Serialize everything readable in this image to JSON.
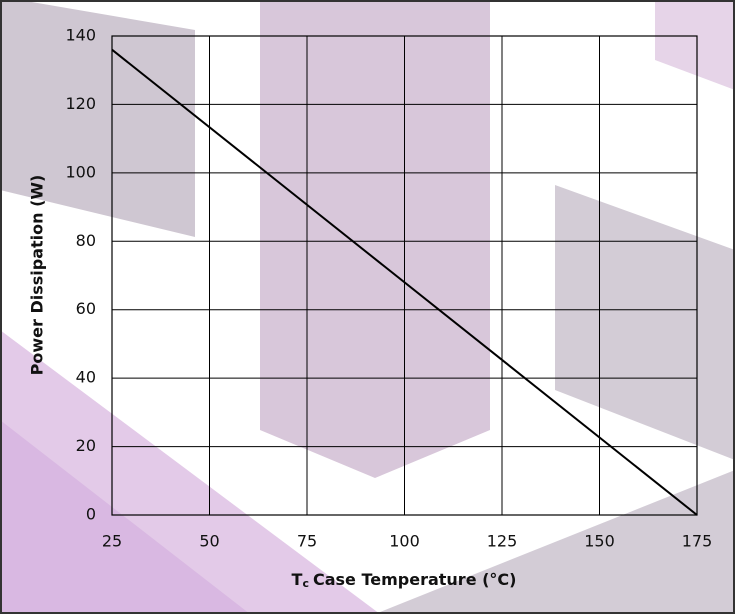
{
  "chart_data": {
    "type": "line",
    "ylabel": "Power Dissipation (W)",
    "xlabel": {
      "symbol": "T",
      "subscript": "c",
      "text": "Case Temperature (°C)"
    },
    "x": [
      25,
      175
    ],
    "series": [
      {
        "color": "#000000",
        "values": [
          136,
          0
        ]
      }
    ],
    "xlim": [
      25,
      175
    ],
    "xticks": [
      25,
      50,
      75,
      100,
      125,
      150,
      175
    ],
    "ylim": [
      0,
      140
    ],
    "yticks": [
      0,
      20,
      40,
      60,
      80,
      100,
      120,
      140
    ],
    "grid": true
  }
}
